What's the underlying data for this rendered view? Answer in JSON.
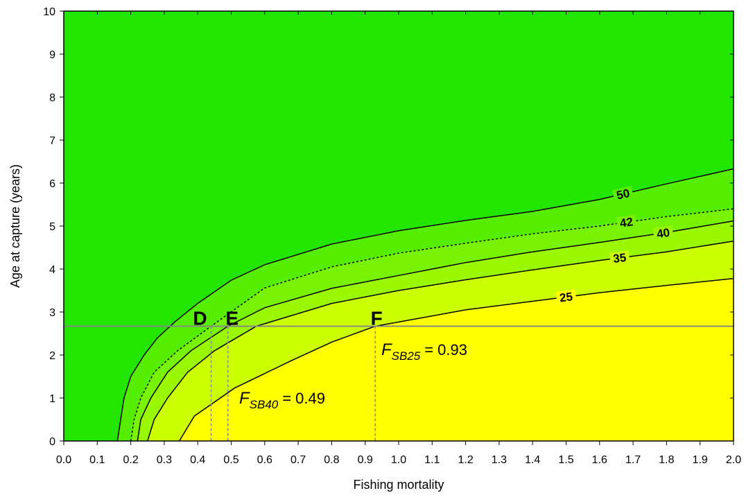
{
  "chart_data": {
    "type": "contour",
    "x_label": "Fishing mortality",
    "y_label": "Age at capture (years)",
    "xlim": [
      0,
      2.0
    ],
    "ylim": [
      0,
      10
    ],
    "xticks": [
      {
        "value": 0,
        "label": "0.0"
      },
      0.1,
      0.2,
      0.3,
      0.4,
      0.5,
      0.6,
      0.7,
      0.8,
      0.9,
      {
        "value": 1,
        "label": "1.0"
      },
      1.1,
      1.2,
      1.3,
      1.4,
      1.5,
      1.6,
      1.7,
      1.8,
      1.9,
      {
        "value": 2,
        "label": "2.0"
      }
    ],
    "yticks": [
      0,
      1,
      2,
      3,
      4,
      5,
      6,
      7,
      8,
      9,
      10
    ],
    "background_color": "#22e600",
    "series": [
      {
        "name": "50",
        "color": "#55ee00",
        "dashed": false,
        "x": [
          0.16,
          0.17,
          0.18,
          0.2,
          0.24,
          0.28,
          0.33,
          0.4,
          0.5,
          0.6,
          0.8,
          1.0,
          1.2,
          1.4,
          1.6,
          1.8,
          2.0
        ],
        "values": [
          0,
          0.5,
          1,
          1.5,
          2,
          2.4,
          2.76,
          3.2,
          3.74,
          4.1,
          4.58,
          4.89,
          5.13,
          5.34,
          5.62,
          5.98,
          6.33
        ]
      },
      {
        "name": "42",
        "color": "#77f200",
        "dashed": true,
        "x": [
          0.2,
          0.21,
          0.23,
          0.27,
          0.34,
          0.44,
          0.6,
          0.8,
          1.0,
          1.2,
          1.4,
          1.6,
          1.8,
          2.0
        ],
        "values": [
          0,
          0.5,
          1,
          1.6,
          2.1,
          2.67,
          3.56,
          4.05,
          4.37,
          4.6,
          4.82,
          5.0,
          5.22,
          5.4
        ]
      },
      {
        "name": "40",
        "color": "#99f700",
        "dashed": false,
        "x": [
          0.22,
          0.23,
          0.26,
          0.31,
          0.38,
          0.49,
          0.6,
          0.8,
          1.0,
          1.2,
          1.4,
          1.6,
          1.8,
          2.0
        ],
        "values": [
          0,
          0.5,
          1,
          1.6,
          2.1,
          2.67,
          3.1,
          3.55,
          3.85,
          4.15,
          4.4,
          4.62,
          4.85,
          5.12
        ]
      },
      {
        "name": "35",
        "color": "#ccff00",
        "dashed": false,
        "x": [
          0.25,
          0.27,
          0.31,
          0.37,
          0.45,
          0.575,
          0.8,
          1.0,
          1.2,
          1.4,
          1.6,
          1.8,
          2.0
        ],
        "values": [
          0,
          0.5,
          1,
          1.6,
          2.1,
          2.67,
          3.2,
          3.5,
          3.75,
          3.98,
          4.2,
          4.4,
          4.65
        ]
      },
      {
        "name": "25",
        "color": "#ffff00",
        "dashed": false,
        "x": [
          0.345,
          0.39,
          0.51,
          0.68,
          0.8,
          0.93,
          1.2,
          1.4,
          1.6,
          1.8,
          2.0
        ],
        "values": [
          0,
          0.58,
          1.23,
          1.87,
          2.3,
          2.67,
          3.05,
          3.25,
          3.45,
          3.62,
          3.78
        ]
      }
    ],
    "reference_age": 2.67,
    "reference_lines": [
      {
        "label": "D",
        "x": 0.44
      },
      {
        "label": "E",
        "x": 0.49
      },
      {
        "label": "F",
        "x": 0.93
      }
    ],
    "annotations": [
      {
        "symbol": "F",
        "subscript": "SB40",
        "sign": "=",
        "value": 0.49
      },
      {
        "symbol": "F",
        "subscript": "SB25",
        "sign": "=",
        "value": 0.93
      }
    ]
  }
}
